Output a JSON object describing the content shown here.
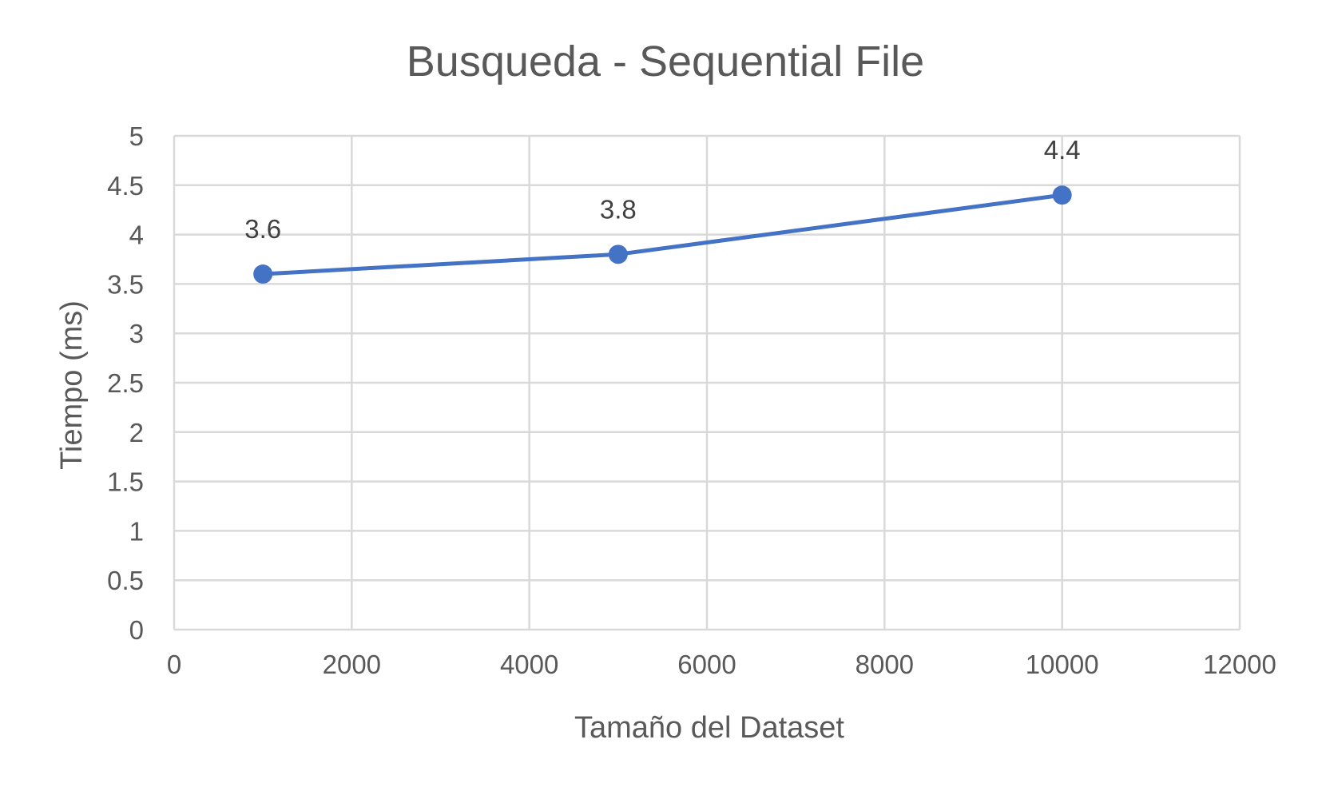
{
  "chart_data": {
    "type": "scatter",
    "title": "Busqueda - Sequential File",
    "xlabel": "Tamaño del Dataset",
    "ylabel": "Tiempo (ms)",
    "xlim": [
      0,
      12000
    ],
    "ylim": [
      0,
      5
    ],
    "x_ticks": [
      "0",
      "2000",
      "4000",
      "6000",
      "8000",
      "10000",
      "12000"
    ],
    "y_ticks": [
      "0",
      "0.5",
      "1",
      "1.5",
      "2",
      "2.5",
      "3",
      "3.5",
      "4",
      "4.5",
      "5"
    ],
    "grid": true,
    "legend": "none",
    "series": [
      {
        "x": [
          1000,
          5000,
          10000
        ],
        "y": [
          3.6,
          3.8,
          4.4
        ],
        "labels": [
          "3.6",
          "3.8",
          "4.4"
        ],
        "style": "line-with-markers",
        "color": "#4472c4"
      }
    ]
  }
}
